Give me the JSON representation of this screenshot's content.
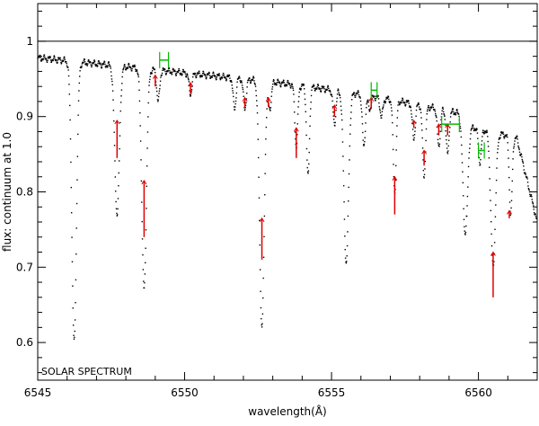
{
  "chart_data": {
    "type": "scatter",
    "title": "",
    "xlabel": "wavelength(Å)",
    "ylabel": "flux: continuum at 1.0",
    "annotation": "SOLAR SPECTRUM",
    "xlim": [
      6545,
      6562
    ],
    "ylim": [
      0.55,
      1.05
    ],
    "x_ticks": [
      6545,
      6550,
      6555,
      6560
    ],
    "y_ticks": [
      0.6,
      0.7,
      0.8,
      0.9,
      1
    ],
    "grid": false,
    "continuum_level": 1.0,
    "colors": {
      "spectrum": "#000000",
      "line_markers": "#e00000",
      "continuum_windows": "#00bb00"
    },
    "absorption_lines": [
      {
        "x": 6546.24,
        "depth": 0.6
      },
      {
        "x": 6547.7,
        "depth": 0.77
      },
      {
        "x": 6548.62,
        "depth": 0.67
      },
      {
        "x": 6549.1,
        "depth": 0.92
      },
      {
        "x": 6550.2,
        "depth": 0.93
      },
      {
        "x": 6551.7,
        "depth": 0.91
      },
      {
        "x": 6552.05,
        "depth": 0.91
      },
      {
        "x": 6552.63,
        "depth": 0.62
      },
      {
        "x": 6552.9,
        "depth": 0.91
      },
      {
        "x": 6553.8,
        "depth": 0.86
      },
      {
        "x": 6554.2,
        "depth": 0.82
      },
      {
        "x": 6555.1,
        "depth": 0.89
      },
      {
        "x": 6555.5,
        "depth": 0.705
      },
      {
        "x": 6556.1,
        "depth": 0.86
      },
      {
        "x": 6556.3,
        "depth": 0.91
      },
      {
        "x": 6556.7,
        "depth": 0.9
      },
      {
        "x": 6557.15,
        "depth": 0.8
      },
      {
        "x": 6557.8,
        "depth": 0.87
      },
      {
        "x": 6558.15,
        "depth": 0.82
      },
      {
        "x": 6558.65,
        "depth": 0.86
      },
      {
        "x": 6558.95,
        "depth": 0.85
      },
      {
        "x": 6559.55,
        "depth": 0.745
      },
      {
        "x": 6560.05,
        "depth": 0.84
      },
      {
        "x": 6560.5,
        "depth": 0.7
      },
      {
        "x": 6561.1,
        "depth": 0.77
      }
    ],
    "marked_lines": [
      {
        "x": 6547.7,
        "y_top": 0.895,
        "y_bottom": 0.845
      },
      {
        "x": 6548.62,
        "y_top": 0.815,
        "y_bottom": 0.74
      },
      {
        "x": 6549.0,
        "y_top": 0.955,
        "y_bottom": 0.94
      },
      {
        "x": 6550.2,
        "y_top": 0.945,
        "y_bottom": 0.93
      },
      {
        "x": 6552.05,
        "y_top": 0.925,
        "y_bottom": 0.912
      },
      {
        "x": 6552.63,
        "y_top": 0.765,
        "y_bottom": 0.71
      },
      {
        "x": 6552.85,
        "y_top": 0.925,
        "y_bottom": 0.913
      },
      {
        "x": 6553.8,
        "y_top": 0.885,
        "y_bottom": 0.845
      },
      {
        "x": 6555.1,
        "y_top": 0.915,
        "y_bottom": 0.9
      },
      {
        "x": 6556.35,
        "y_top": 0.925,
        "y_bottom": 0.91
      },
      {
        "x": 6557.15,
        "y_top": 0.82,
        "y_bottom": 0.77
      },
      {
        "x": 6557.8,
        "y_top": 0.895,
        "y_bottom": 0.885
      },
      {
        "x": 6558.15,
        "y_top": 0.855,
        "y_bottom": 0.835
      },
      {
        "x": 6558.65,
        "y_top": 0.89,
        "y_bottom": 0.875
      },
      {
        "x": 6558.95,
        "y_top": 0.89,
        "y_bottom": 0.875
      },
      {
        "x": 6560.5,
        "y_top": 0.72,
        "y_bottom": 0.66
      },
      {
        "x": 6561.05,
        "y_top": 0.775,
        "y_bottom": 0.765
      }
    ],
    "continuum_windows": [
      {
        "x1": 6549.15,
        "x2": 6549.45,
        "y": 0.975
      },
      {
        "x1": 6556.35,
        "x2": 6556.55,
        "y": 0.935
      },
      {
        "x1": 6558.75,
        "x2": 6559.35,
        "y": 0.89
      },
      {
        "x1": 6560.0,
        "x2": 6560.2,
        "y": 0.855
      }
    ]
  }
}
